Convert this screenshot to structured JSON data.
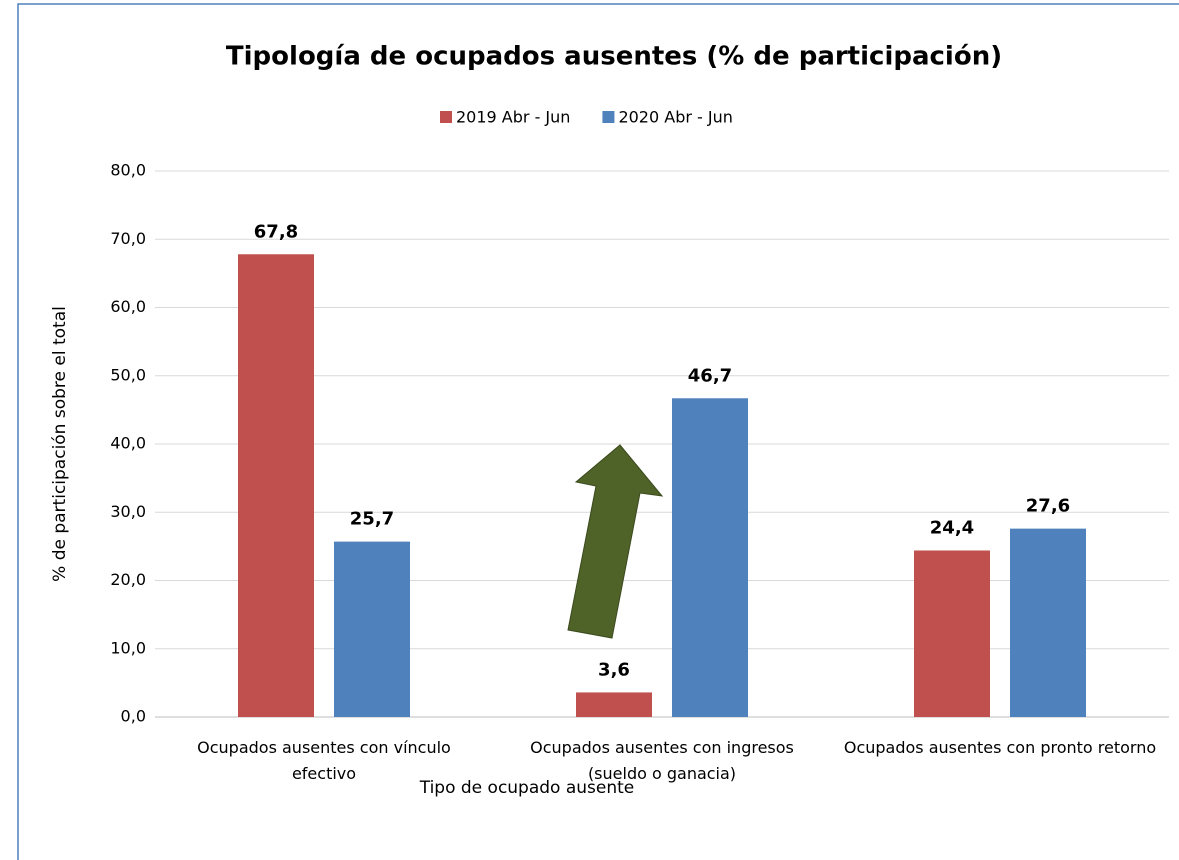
{
  "chart_data": {
    "type": "bar",
    "title": "Tipología de ocupados ausentes (% de participación)",
    "xlabel": "Tipo de ocupado ausente",
    "ylabel": "% de participación sobre el total",
    "categories": [
      "Ocupados ausentes con vínculo efectivo",
      "Ocupados ausentes con ingresos (sueldo o ganacia)",
      "Ocupados ausentes con pronto retorno"
    ],
    "series": [
      {
        "name": "2019 Abr - Jun",
        "color": "#c0504d",
        "values": [
          67.8,
          3.6,
          24.4
        ],
        "value_labels": [
          "67,8",
          "3,6",
          "24,4"
        ]
      },
      {
        "name": "2020 Abr - Jun",
        "color": "#4f81bd",
        "values": [
          25.7,
          46.7,
          27.6
        ],
        "value_labels": [
          "25,7",
          "46,7",
          "27,6"
        ]
      }
    ],
    "ylim": [
      0,
      80
    ],
    "yticks": [
      {
        "value": 0,
        "label": "0,0"
      },
      {
        "value": 10,
        "label": "10,0"
      },
      {
        "value": 20,
        "label": "20,0"
      },
      {
        "value": 30,
        "label": "30,0"
      },
      {
        "value": 40,
        "label": "40,0"
      },
      {
        "value": 50,
        "label": "50,0"
      },
      {
        "value": 60,
        "label": "60,0"
      },
      {
        "value": 70,
        "label": "70,0"
      },
      {
        "value": 80,
        "label": "80,0"
      }
    ],
    "grid": true,
    "legend": "top"
  }
}
